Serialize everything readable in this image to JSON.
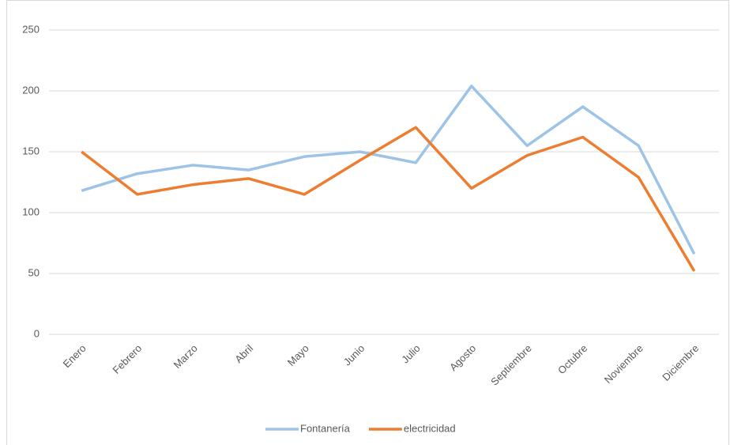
{
  "chart_data": {
    "type": "line",
    "categories": [
      "Enero",
      "Febrero",
      "Marzo",
      "Abril",
      "Mayo",
      "Junio",
      "Julio",
      "Agosto",
      "Septiembre",
      "Octubre",
      "Noviembre",
      "Diciembre"
    ],
    "series": [
      {
        "name": "Fontanería",
        "color": "#9dc3e6",
        "values": [
          118,
          132,
          139,
          135,
          146,
          150,
          141,
          204,
          155,
          187,
          155,
          66
        ]
      },
      {
        "name": "electricidad",
        "color": "#ed7d31",
        "values": [
          150,
          115,
          123,
          128,
          115,
          143,
          170,
          120,
          147,
          162,
          129,
          52
        ]
      }
    ],
    "ylim": [
      0,
      250
    ],
    "yticks": [
      0,
      50,
      100,
      150,
      200,
      250
    ],
    "grid": true,
    "legend": "bottom"
  }
}
